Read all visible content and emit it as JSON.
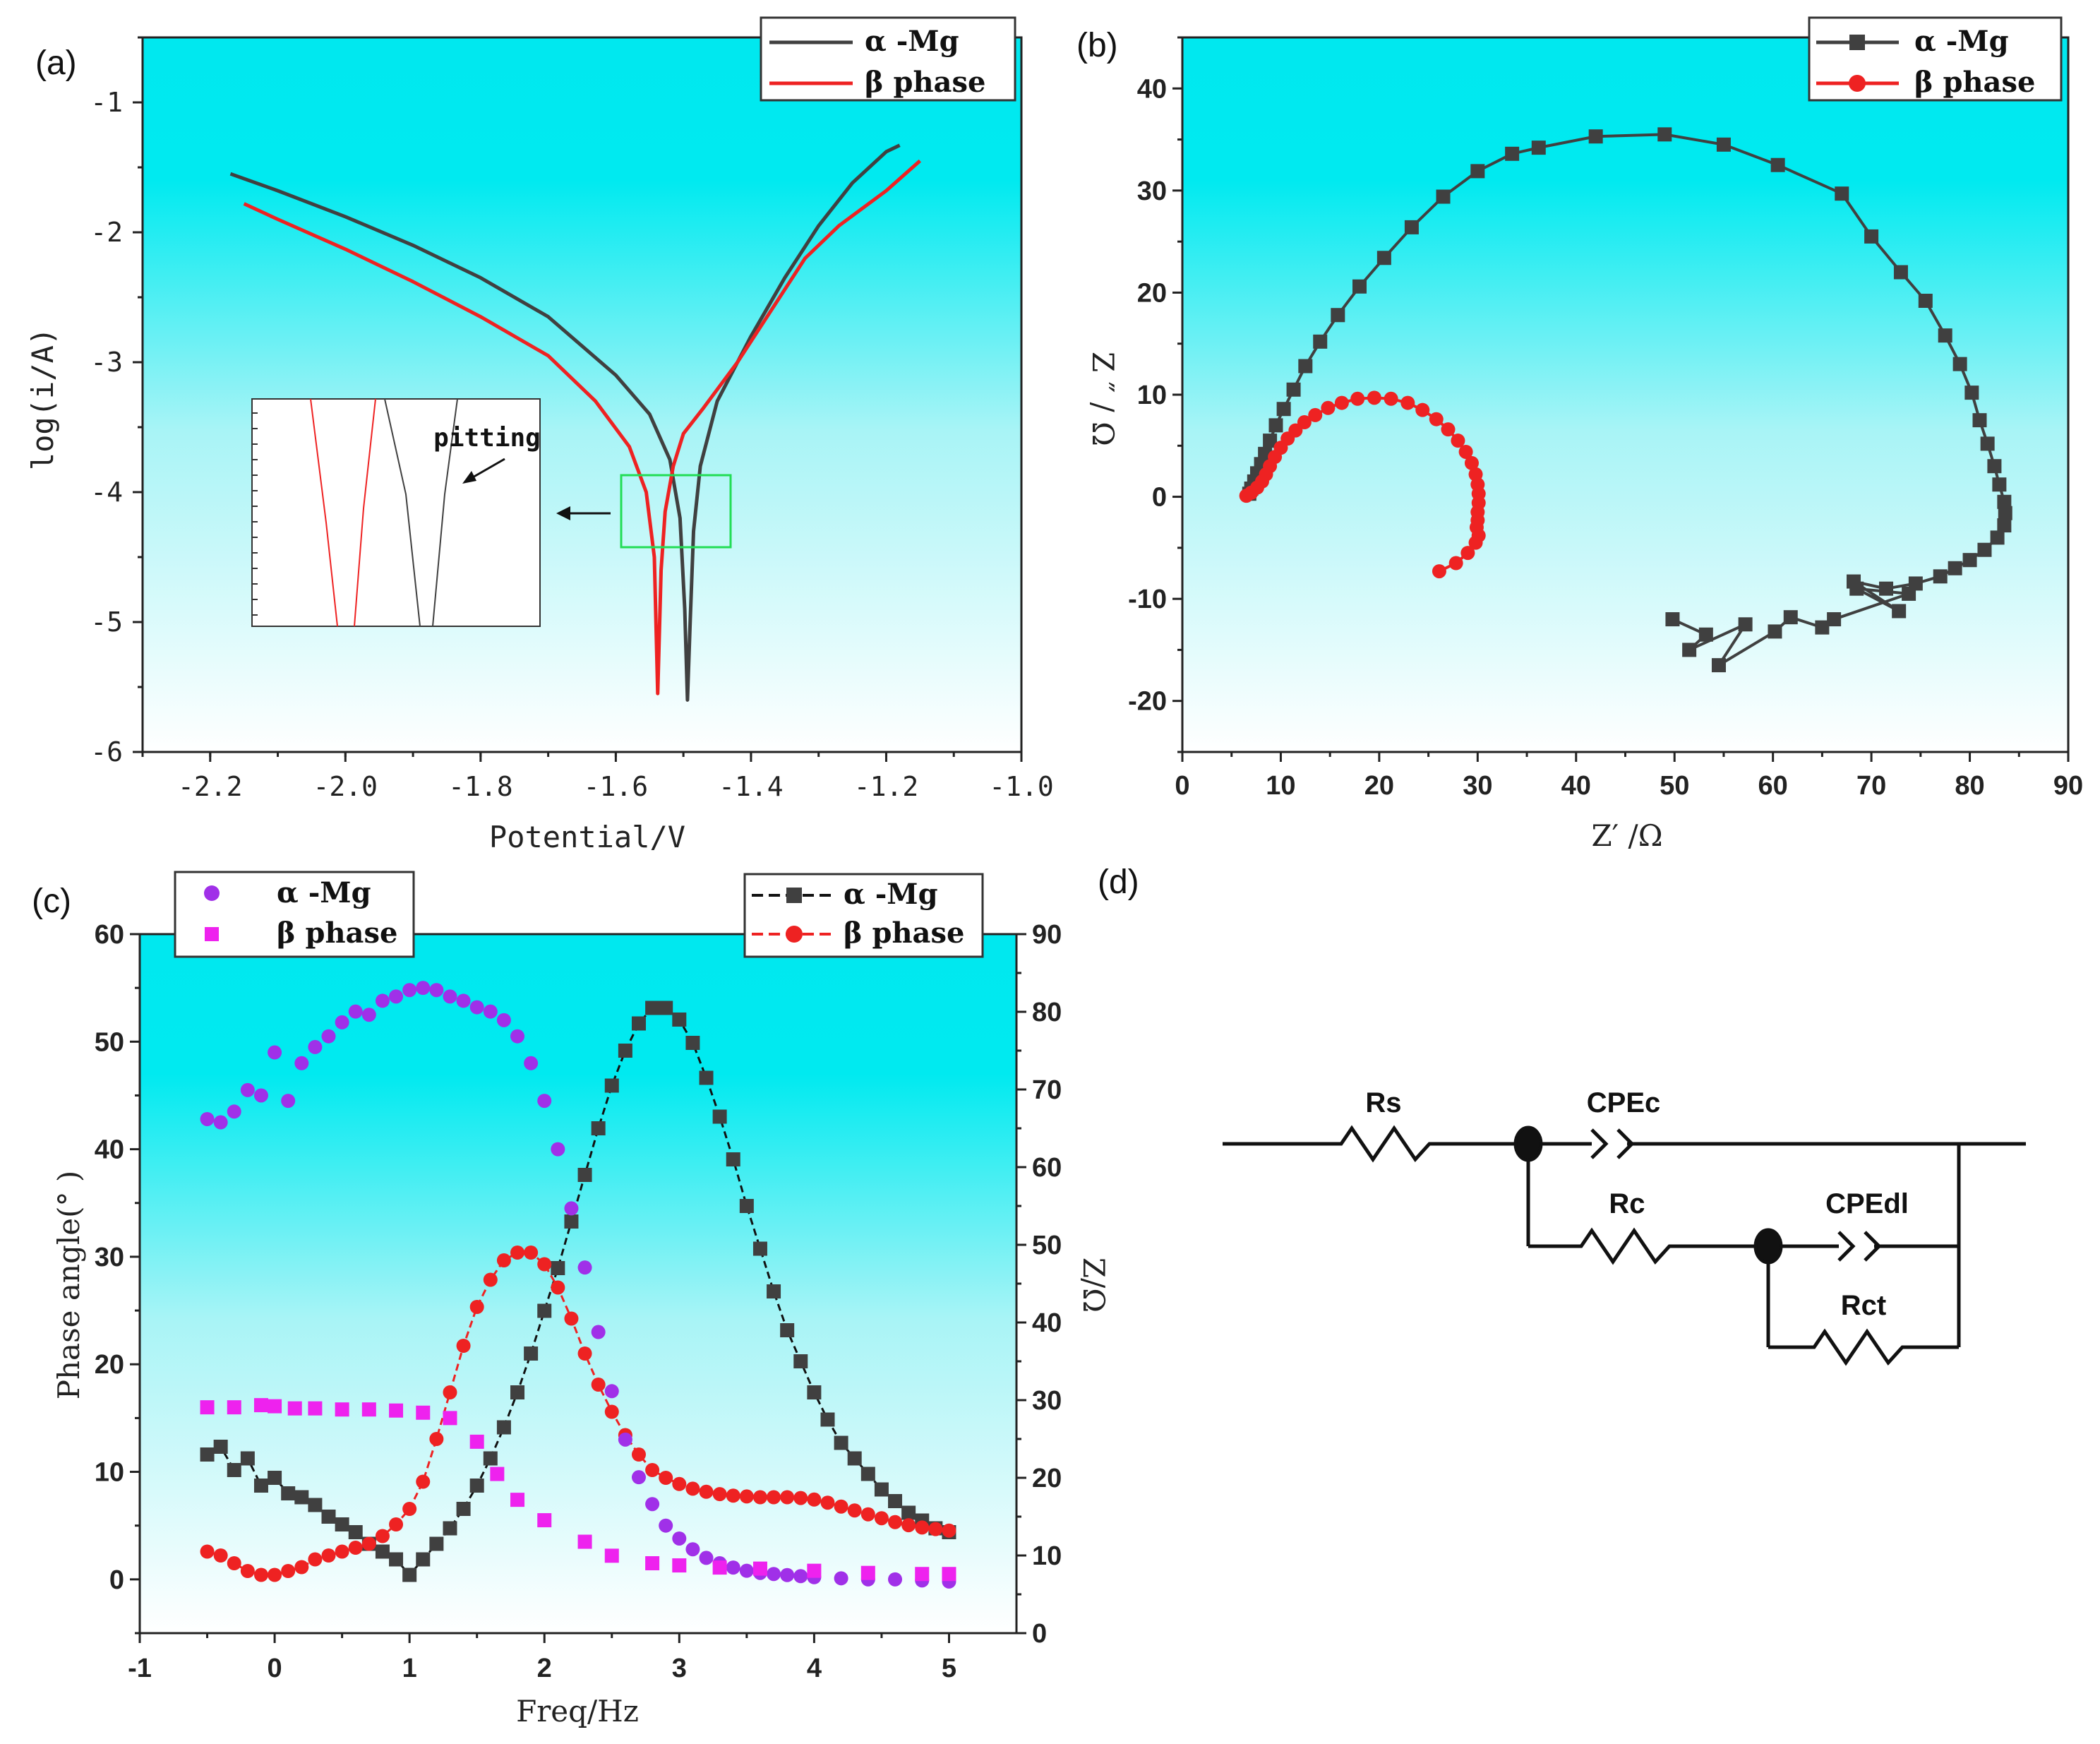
{
  "colors": {
    "alpha": "#404040",
    "beta": "#ee2222",
    "purple": "#a030e8",
    "magenta": "#ee22ee",
    "green_box": "#22dd55",
    "bg_top": "#00e8ef",
    "bg_bottom": "#ffffff"
  },
  "chart_data": [
    {
      "panel": "(a)",
      "type": "line",
      "xlabel": "Potential/V",
      "ylabel": "log(i/A)",
      "xlim": [
        -2.3,
        -1.0
      ],
      "ylim": [
        -6,
        -0.5
      ],
      "x_ticks": [
        -2.2,
        -2.0,
        -1.8,
        -1.6,
        -1.4,
        -1.2,
        -1.0
      ],
      "x_tick_labels": [
        "-2.2",
        "-2.0",
        "-1.8",
        "-1.6",
        "-1.4",
        "-1.2",
        "-1.0"
      ],
      "y_ticks": [
        -6,
        -5,
        -4,
        -3,
        -2,
        -1
      ],
      "y_tick_labels": [
        "-6",
        "-5",
        "-4",
        "-3",
        "-2",
        "-1"
      ],
      "legend": [
        "α -Mg",
        "β  phase"
      ],
      "series": [
        {
          "name": "α -Mg",
          "x": [
            -2.17,
            -2.1,
            -2.0,
            -1.9,
            -1.8,
            -1.7,
            -1.6,
            -1.55,
            -1.52,
            -1.505,
            -1.498,
            -1.494,
            -1.49,
            -1.485,
            -1.475,
            -1.45,
            -1.4,
            -1.35,
            -1.3,
            -1.25,
            -1.2,
            -1.18
          ],
          "y": [
            -1.55,
            -1.68,
            -1.88,
            -2.1,
            -2.35,
            -2.65,
            -3.1,
            -3.4,
            -3.75,
            -4.2,
            -4.9,
            -5.6,
            -5.0,
            -4.3,
            -3.8,
            -3.3,
            -2.8,
            -2.35,
            -1.95,
            -1.62,
            -1.38,
            -1.33
          ]
        },
        {
          "name": "β  phase",
          "x": [
            -2.15,
            -2.1,
            -2.0,
            -1.9,
            -1.8,
            -1.7,
            -1.63,
            -1.58,
            -1.555,
            -1.543,
            -1.538,
            -1.533,
            -1.527,
            -1.515,
            -1.5,
            -1.47,
            -1.42,
            -1.37,
            -1.32,
            -1.27,
            -1.2,
            -1.15
          ],
          "y": [
            -1.78,
            -1.9,
            -2.13,
            -2.38,
            -2.65,
            -2.95,
            -3.3,
            -3.65,
            -4.0,
            -4.5,
            -5.55,
            -4.6,
            -4.15,
            -3.8,
            -3.55,
            -3.35,
            -3.0,
            -2.6,
            -2.2,
            -1.95,
            -1.68,
            -1.45
          ]
        }
      ],
      "inset_annotation": "pitting"
    },
    {
      "panel": "(b)",
      "type": "line",
      "xlabel": "Z′ /Ω",
      "ylabel": "Z ″ / Ω",
      "xlim": [
        0,
        90
      ],
      "ylim": [
        -25,
        45
      ],
      "x_ticks": [
        0,
        10,
        20,
        30,
        40,
        50,
        60,
        70,
        80,
        90
      ],
      "x_tick_labels": [
        "0",
        "10",
        "20",
        "30",
        "40",
        "50",
        "60",
        "70",
        "80",
        "90"
      ],
      "y_ticks": [
        -20,
        -10,
        0,
        10,
        20,
        30,
        40
      ],
      "y_tick_labels": [
        "-20",
        "-10",
        "0",
        "10",
        "20",
        "30",
        "40"
      ],
      "legend": [
        "α -Mg",
        "β  phase"
      ],
      "series": [
        {
          "name": "α -Mg",
          "x": [
            6.8,
            7.0,
            7.3,
            7.6,
            8.0,
            8.4,
            8.9,
            9.5,
            10.3,
            11.3,
            12.5,
            14.0,
            15.8,
            18.0,
            20.5,
            23.3,
            26.5,
            30.0,
            33.5,
            36.2,
            42.0,
            49.0,
            55.0,
            60.5,
            67.0,
            70.0,
            73.0,
            75.5,
            77.5,
            79.0,
            80.2,
            81.0,
            81.8,
            82.5,
            83.0,
            83.5,
            83.6,
            83.5,
            82.8,
            81.5,
            80.0,
            78.5,
            77.0,
            74.5,
            71.5,
            68.2,
            72.8,
            68.5,
            73.8,
            66.2,
            65.0,
            61.8,
            60.2,
            54.5,
            57.2,
            51.5,
            53.2,
            49.8
          ],
          "y": [
            0.3,
            0.8,
            1.5,
            2.3,
            3.2,
            4.2,
            5.5,
            7.0,
            8.6,
            10.5,
            12.8,
            15.2,
            17.8,
            20.6,
            23.4,
            26.4,
            29.4,
            31.9,
            33.6,
            34.2,
            35.3,
            35.5,
            34.5,
            32.5,
            29.7,
            25.5,
            22.0,
            19.2,
            15.8,
            13.0,
            10.2,
            7.5,
            5.2,
            3.0,
            1.2,
            -0.5,
            -1.6,
            -2.8,
            -4.0,
            -5.2,
            -6.2,
            -7.0,
            -7.8,
            -8.5,
            -9.0,
            -8.3,
            -11.2,
            -9.0,
            -9.5,
            -12.0,
            -12.8,
            -11.8,
            -13.2,
            -16.5,
            -12.5,
            -15.0,
            -13.5,
            -12.0
          ]
        },
        {
          "name": "β  phase",
          "x": [
            6.5,
            7.0,
            7.6,
            8.1,
            8.5,
            8.9,
            9.4,
            10.0,
            10.7,
            11.5,
            12.4,
            13.5,
            14.8,
            16.2,
            17.8,
            19.5,
            21.2,
            22.9,
            24.4,
            25.8,
            27.0,
            28.0,
            28.8,
            29.4,
            29.8,
            30.0,
            30.1,
            30.1,
            30.0,
            30.0,
            29.9,
            30.1,
            29.8,
            29.0,
            27.8,
            26.1
          ],
          "y": [
            0.1,
            0.4,
            0.9,
            1.5,
            2.2,
            3.0,
            3.9,
            4.8,
            5.7,
            6.5,
            7.3,
            8.0,
            8.7,
            9.2,
            9.6,
            9.7,
            9.6,
            9.2,
            8.5,
            7.6,
            6.6,
            5.5,
            4.4,
            3.3,
            2.2,
            1.2,
            0.3,
            -0.6,
            -1.5,
            -2.3,
            -3.0,
            -3.8,
            -4.5,
            -5.5,
            -6.5,
            -7.3
          ]
        }
      ]
    },
    {
      "panel": "(c)",
      "type": "scatter",
      "xlabel": "Freq/Hz",
      "ylabel_left": "Phase angle(° )",
      "ylabel_right": "Z/Ω",
      "xlim": [
        -1,
        5.5
      ],
      "ylim_left": [
        -5,
        60
      ],
      "ylim_right": [
        0,
        90
      ],
      "x_ticks": [
        -1,
        0,
        1,
        2,
        3,
        4,
        5
      ],
      "x_tick_labels": [
        "-1",
        "0",
        "1",
        "2",
        "3",
        "4",
        "5"
      ],
      "y_ticks_left": [
        0,
        10,
        20,
        30,
        40,
        50,
        60
      ],
      "y_tick_labels_left": [
        "0",
        "10",
        "20",
        "30",
        "40",
        "50",
        "60"
      ],
      "y_ticks_right": [
        0,
        10,
        20,
        30,
        40,
        50,
        60,
        70,
        80,
        90
      ],
      "y_tick_labels_right": [
        "0",
        "10",
        "20",
        "30",
        "40",
        "50",
        "60",
        "70",
        "80",
        "90"
      ],
      "legend_left": [
        "α -Mg",
        "β  phase"
      ],
      "legend_right": [
        "α -Mg",
        "β  phase"
      ],
      "series_left": [
        {
          "name": "α -Mg",
          "x": [
            -0.5,
            -0.4,
            -0.3,
            -0.2,
            -0.1,
            0.0,
            0.1,
            0.2,
            0.3,
            0.4,
            0.5,
            0.6,
            0.7,
            0.8,
            0.9,
            1.0,
            1.1,
            1.2,
            1.3,
            1.4,
            1.5,
            1.6,
            1.7,
            1.8,
            1.9,
            2.0,
            2.1,
            2.2,
            2.3,
            2.4,
            2.5,
            2.6,
            2.7,
            2.8,
            2.9,
            3.0,
            3.1,
            3.2,
            3.3,
            3.4,
            3.5,
            3.6,
            3.7,
            3.8,
            3.9,
            4.0,
            4.2,
            4.4,
            4.6,
            4.8,
            5.0
          ],
          "y": [
            42.8,
            42.5,
            43.5,
            45.5,
            45.0,
            49.0,
            44.5,
            48.0,
            49.5,
            50.5,
            51.8,
            52.8,
            52.5,
            53.8,
            54.2,
            54.8,
            55.0,
            54.8,
            54.2,
            53.8,
            53.2,
            52.8,
            52.0,
            50.5,
            48.0,
            44.5,
            40.0,
            34.5,
            29.0,
            23.0,
            17.5,
            13.0,
            9.5,
            7.0,
            5.0,
            3.8,
            2.8,
            2.0,
            1.5,
            1.1,
            0.8,
            0.6,
            0.5,
            0.4,
            0.3,
            0.2,
            0.1,
            0.0,
            0.0,
            -0.1,
            -0.2
          ]
        },
        {
          "name": "β  phase",
          "x": [
            -0.5,
            -0.3,
            -0.1,
            0.0,
            0.15,
            0.3,
            0.5,
            0.7,
            0.9,
            1.1,
            1.3,
            1.5,
            1.65,
            1.8,
            2.0,
            2.3,
            2.5,
            2.8,
            3.0,
            3.3,
            3.6,
            4.0,
            4.4,
            4.8,
            5.0
          ],
          "y": [
            16.0,
            16.0,
            16.2,
            16.1,
            15.9,
            15.9,
            15.8,
            15.8,
            15.7,
            15.5,
            15.0,
            12.8,
            9.8,
            7.4,
            5.5,
            3.5,
            2.2,
            1.5,
            1.3,
            1.1,
            1.0,
            0.8,
            0.6,
            0.5,
            0.5
          ]
        }
      ],
      "series_right": [
        {
          "name": "α -Mg",
          "x": [
            -0.5,
            -0.4,
            -0.3,
            -0.2,
            -0.1,
            0.0,
            0.1,
            0.2,
            0.3,
            0.4,
            0.5,
            0.6,
            0.7,
            0.8,
            0.9,
            1.0,
            1.1,
            1.2,
            1.3,
            1.4,
            1.5,
            1.6,
            1.7,
            1.8,
            1.9,
            2.0,
            2.1,
            2.2,
            2.3,
            2.4,
            2.5,
            2.6,
            2.7,
            2.8,
            2.9,
            3.0,
            3.1,
            3.2,
            3.3,
            3.4,
            3.5,
            3.6,
            3.7,
            3.8,
            3.9,
            4.0,
            4.1,
            4.2,
            4.3,
            4.4,
            4.5,
            4.6,
            4.7,
            4.8,
            4.9,
            5.0
          ],
          "y": [
            23.0,
            24.0,
            21.0,
            22.5,
            19.0,
            20.0,
            18.0,
            17.5,
            16.5,
            15.0,
            14.0,
            13.0,
            11.5,
            10.5,
            9.5,
            7.5,
            9.5,
            11.5,
            13.5,
            16.0,
            19.0,
            22.5,
            26.5,
            31.0,
            36.0,
            41.5,
            47.0,
            53.0,
            59.0,
            65.0,
            70.5,
            75.0,
            78.5,
            80.5,
            80.5,
            79.0,
            76.0,
            71.5,
            66.5,
            61.0,
            55.0,
            49.5,
            44.0,
            39.0,
            35.0,
            31.0,
            27.5,
            24.5,
            22.5,
            20.5,
            18.5,
            17.0,
            15.5,
            14.5,
            13.5,
            13.0
          ]
        },
        {
          "name": "β  phase",
          "x": [
            -0.5,
            -0.4,
            -0.3,
            -0.2,
            -0.1,
            0.0,
            0.1,
            0.2,
            0.3,
            0.4,
            0.5,
            0.6,
            0.7,
            0.8,
            0.9,
            1.0,
            1.1,
            1.2,
            1.3,
            1.4,
            1.5,
            1.6,
            1.7,
            1.8,
            1.9,
            2.0,
            2.1,
            2.2,
            2.3,
            2.4,
            2.5,
            2.6,
            2.7,
            2.8,
            2.9,
            3.0,
            3.1,
            3.2,
            3.3,
            3.4,
            3.5,
            3.6,
            3.7,
            3.8,
            3.9,
            4.0,
            4.1,
            4.2,
            4.3,
            4.4,
            4.5,
            4.6,
            4.7,
            4.8,
            4.9,
            5.0
          ],
          "y": [
            10.5,
            10.0,
            9.0,
            8.0,
            7.5,
            7.5,
            8.0,
            8.5,
            9.5,
            10.0,
            10.5,
            11.0,
            11.5,
            12.5,
            14.0,
            16.0,
            19.5,
            25.0,
            31.0,
            37.0,
            42.0,
            45.5,
            48.0,
            49.0,
            49.0,
            47.5,
            44.5,
            40.5,
            36.0,
            32.0,
            28.5,
            25.5,
            23.0,
            21.0,
            20.0,
            19.2,
            18.6,
            18.2,
            17.9,
            17.7,
            17.6,
            17.5,
            17.5,
            17.5,
            17.4,
            17.2,
            16.8,
            16.3,
            15.8,
            15.3,
            14.8,
            14.3,
            13.9,
            13.6,
            13.4,
            13.2
          ]
        }
      ]
    }
  ],
  "panel_labels": {
    "a": "(a)",
    "b": "(b)",
    "c": "(c)",
    "d": "(d)"
  },
  "circuit": {
    "rs": "Rs",
    "cpec": "CPEc",
    "rc": "Rc",
    "cpedl": "CPEdl",
    "rct": "Rct"
  }
}
